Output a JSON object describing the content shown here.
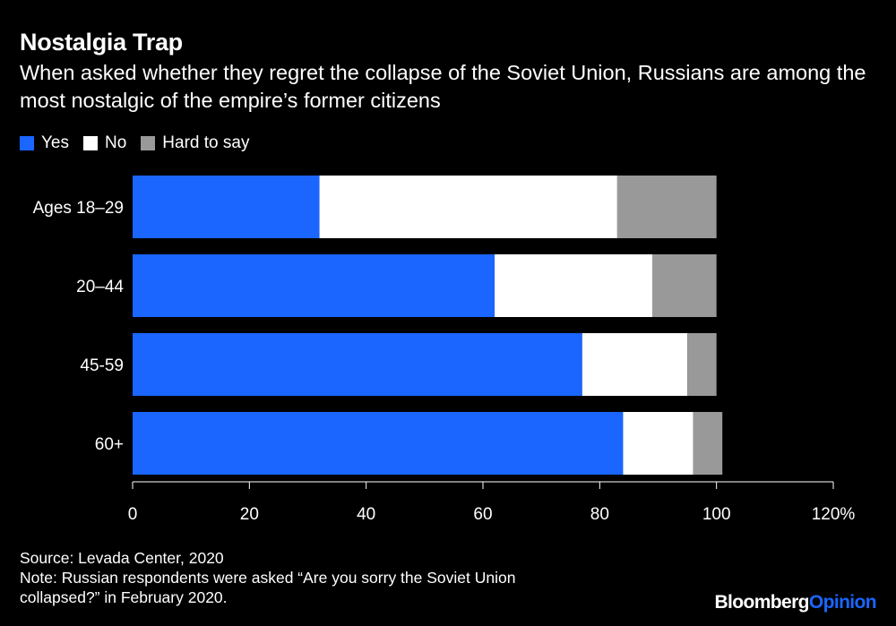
{
  "title": "Nostalgia Trap",
  "subtitle": "When asked whether they regret the collapse of the Soviet Union, Russians are among the most nostalgic of the empire’s former citizens",
  "source": "Source: Levada Center, 2020",
  "note_line1": "Note: Russian respondents were asked “Are you sorry the Soviet Union",
  "note_line2": "collapsed?” in February 2020.",
  "logo": {
    "part1": "Bloomberg",
    "part2": "Opinion"
  },
  "colors": {
    "yes": "#1a66ff",
    "no": "#ffffff",
    "hard": "#999999",
    "background": "#000000"
  },
  "chart_data": {
    "type": "bar",
    "orientation": "horizontal",
    "stacked": true,
    "title": "Nostalgia Trap",
    "categories": [
      "Ages 18–29",
      "20–44",
      "45-59",
      "60+"
    ],
    "series": [
      {
        "name": "Yes",
        "values": [
          32,
          62,
          77,
          84
        ]
      },
      {
        "name": "No",
        "values": [
          51,
          27,
          18,
          12
        ]
      },
      {
        "name": "Hard to say",
        "values": [
          17,
          11,
          5,
          5
        ]
      }
    ],
    "xlim": [
      0,
      120
    ],
    "xticks": [
      0,
      20,
      40,
      60,
      80,
      100,
      120
    ],
    "xtick_labels": [
      "0",
      "20",
      "40",
      "60",
      "80",
      "100",
      "120%"
    ],
    "xlabel": "",
    "ylabel": "",
    "legend_position": "top-left",
    "grid": false
  }
}
